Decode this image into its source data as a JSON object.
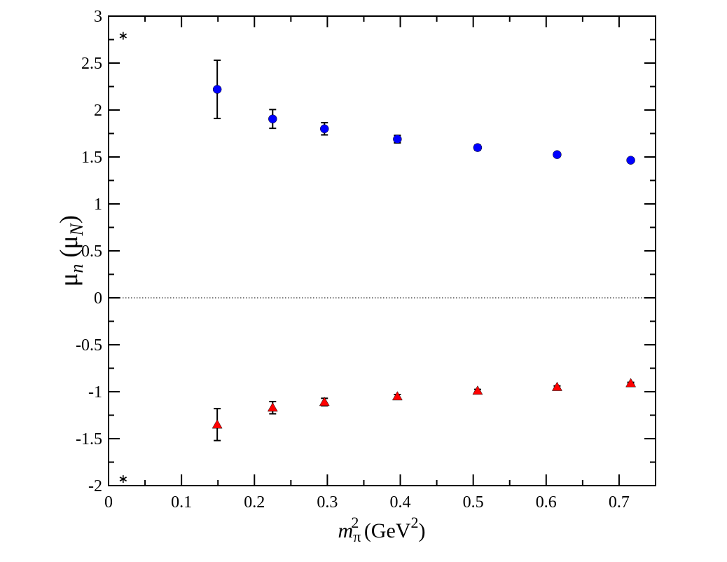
{
  "chart_data": {
    "type": "scatter",
    "xlim": [
      0,
      0.75
    ],
    "ylim": [
      -2,
      3
    ],
    "xticks": [
      "0",
      "0.1",
      "0.2",
      "0.3",
      "0.4",
      "0.5",
      "0.6",
      "0.7"
    ],
    "yticks": [
      "-2",
      "-1.5",
      "-1",
      "-0.5",
      "0",
      "0.5",
      "1",
      "1.5",
      "2",
      "2.5",
      "3"
    ],
    "xlabel": {
      "main": "m",
      "sub": "π",
      "sup": "2",
      "unit": " (GeV",
      "unit_sup": "2",
      "close": ")"
    },
    "ylabel": {
      "main": "μ",
      "sub": "n",
      "unit_open": " (μ",
      "unit_sub": "N",
      "close": ")"
    },
    "zero_line": true,
    "series": [
      {
        "marker": "circle",
        "color": "#0000ff",
        "points": [
          {
            "x": 0.149,
            "y": 2.22,
            "err": 0.31
          },
          {
            "x": 0.225,
            "y": 1.905,
            "err": 0.1
          },
          {
            "x": 0.296,
            "y": 1.8,
            "err": 0.065
          },
          {
            "x": 0.396,
            "y": 1.69,
            "err": 0.04
          },
          {
            "x": 0.506,
            "y": 1.6,
            "err": 0.025
          },
          {
            "x": 0.615,
            "y": 1.525,
            "err": 0.02
          },
          {
            "x": 0.716,
            "y": 1.465,
            "err": 0.015
          }
        ]
      },
      {
        "marker": "triangle",
        "color": "#ff0000",
        "points": [
          {
            "x": 0.149,
            "y": -1.35,
            "err": 0.17
          },
          {
            "x": 0.225,
            "y": -1.17,
            "err": 0.065
          },
          {
            "x": 0.296,
            "y": -1.11,
            "err": 0.04
          },
          {
            "x": 0.396,
            "y": -1.05,
            "err": 0.02
          },
          {
            "x": 0.506,
            "y": -0.99,
            "err": 0.015
          },
          {
            "x": 0.615,
            "y": -0.95,
            "err": 0.012
          },
          {
            "x": 0.716,
            "y": -0.91,
            "err": 0.01
          }
        ]
      },
      {
        "marker": "star",
        "color": "#000000",
        "points": [
          {
            "x": 0.02,
            "y": 2.79
          },
          {
            "x": 0.02,
            "y": -1.93
          }
        ]
      }
    ]
  }
}
